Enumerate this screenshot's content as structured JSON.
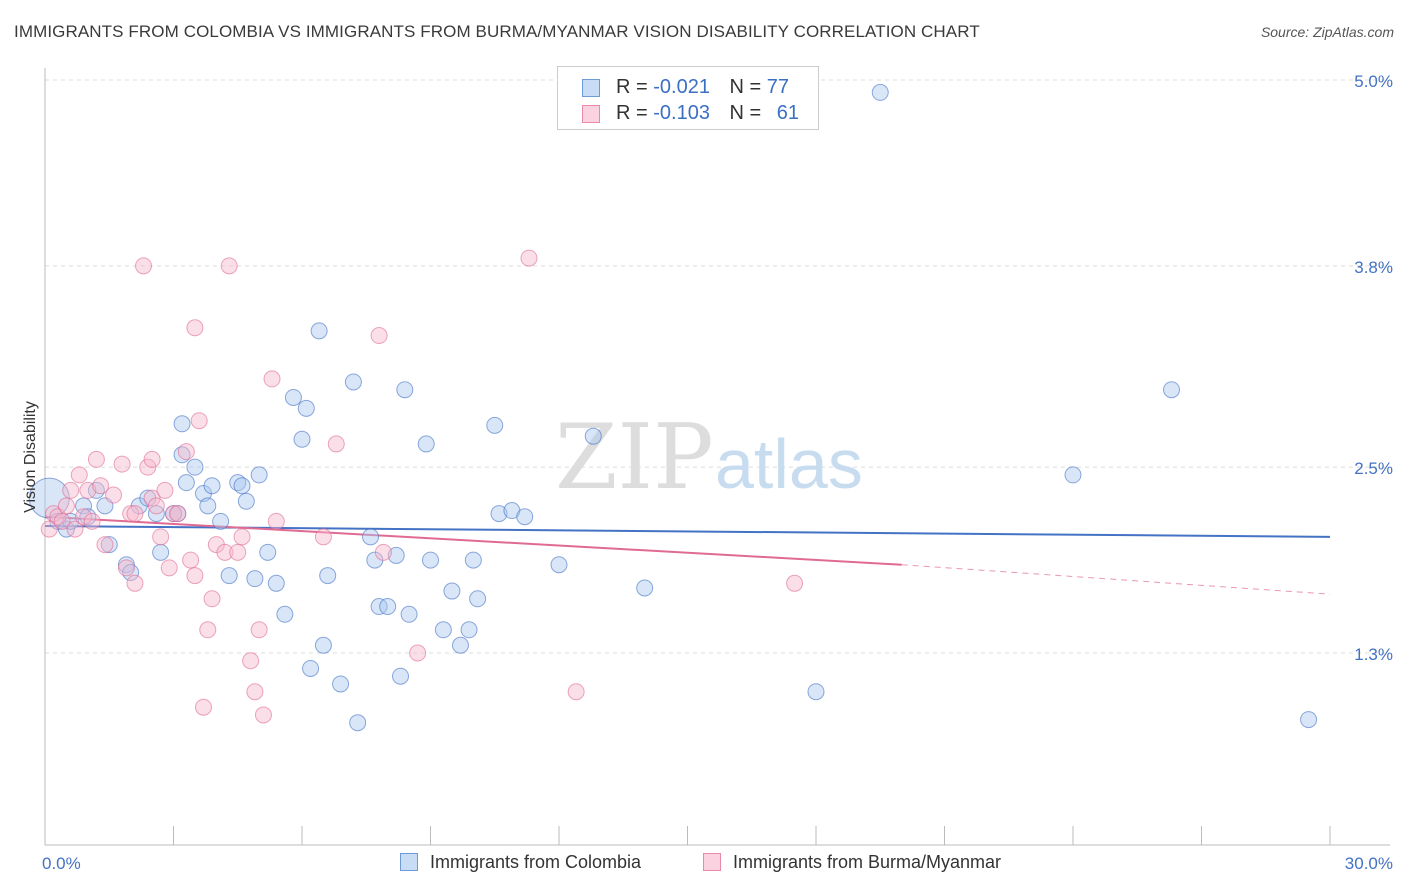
{
  "title": "IMMIGRANTS FROM COLOMBIA VS IMMIGRANTS FROM BURMA/MYANMAR VISION DISABILITY CORRELATION CHART",
  "source_label": "Source: ZipAtlas.com",
  "watermark": {
    "zip": "ZIP",
    "atlas": "atlas"
  },
  "legend": {
    "rows": [
      {
        "r_label": "R = ",
        "r_value": "-0.021",
        "n_label": "N = ",
        "n_value": "77",
        "color": "#a8c8f0"
      },
      {
        "r_label": "R = ",
        "r_value": "-0.103",
        "n_label": "N = ",
        "n_value": "61",
        "color": "#f6b8cc"
      }
    ]
  },
  "bottom_legend": {
    "colombia": "Immigrants from Colombia",
    "burma": "Immigrants from Burma/Myanmar"
  },
  "chart_data": {
    "type": "scatter",
    "title": "IMMIGRANTS FROM COLOMBIA VS IMMIGRANTS FROM BURMA/MYANMAR VISION DISABILITY CORRELATION CHART",
    "ylabel": "Vision Disability",
    "xlabel": "",
    "xlim": [
      0,
      30
    ],
    "ylim": [
      0,
      5.2
    ],
    "x_tick_labels": [
      "0.0%",
      "30.0%"
    ],
    "y_ticks": [
      1.3,
      2.5,
      3.8,
      5.0
    ],
    "y_tick_labels": [
      "1.3%",
      "2.5%",
      "3.8%",
      "5.0%"
    ],
    "series": [
      {
        "name": "Immigrants from Colombia",
        "color": "#4472c4",
        "fill": "#a8c8f0",
        "trend": {
          "x": [
            0,
            30
          ],
          "y": [
            2.12,
            2.05
          ]
        },
        "points": [
          [
            0.1,
            2.3
          ],
          [
            0.3,
            2.15
          ],
          [
            0.5,
            2.1
          ],
          [
            0.6,
            2.15
          ],
          [
            0.9,
            2.25
          ],
          [
            1.0,
            2.18
          ],
          [
            1.2,
            2.35
          ],
          [
            1.4,
            2.25
          ],
          [
            1.5,
            2.0
          ],
          [
            1.9,
            1.87
          ],
          [
            2.0,
            1.82
          ],
          [
            2.2,
            2.25
          ],
          [
            2.4,
            2.3
          ],
          [
            2.6,
            2.2
          ],
          [
            2.7,
            1.95
          ],
          [
            3.0,
            2.2
          ],
          [
            3.1,
            2.2
          ],
          [
            3.2,
            2.58
          ],
          [
            3.2,
            2.78
          ],
          [
            3.3,
            2.4
          ],
          [
            3.5,
            2.5
          ],
          [
            3.7,
            2.33
          ],
          [
            3.8,
            2.25
          ],
          [
            3.9,
            2.38
          ],
          [
            4.1,
            2.15
          ],
          [
            4.3,
            1.8
          ],
          [
            4.5,
            2.4
          ],
          [
            4.6,
            2.38
          ],
          [
            4.7,
            2.28
          ],
          [
            4.9,
            1.78
          ],
          [
            5.0,
            2.45
          ],
          [
            5.2,
            1.95
          ],
          [
            5.4,
            1.75
          ],
          [
            5.6,
            1.55
          ],
          [
            5.8,
            2.95
          ],
          [
            6.0,
            2.68
          ],
          [
            6.1,
            2.88
          ],
          [
            6.2,
            1.2
          ],
          [
            6.4,
            3.38
          ],
          [
            6.5,
            1.35
          ],
          [
            6.6,
            1.8
          ],
          [
            6.9,
            1.1
          ],
          [
            7.2,
            3.05
          ],
          [
            7.3,
            0.85
          ],
          [
            7.6,
            2.05
          ],
          [
            7.7,
            1.9
          ],
          [
            7.8,
            1.6
          ],
          [
            8.0,
            1.6
          ],
          [
            8.2,
            1.93
          ],
          [
            8.3,
            1.15
          ],
          [
            8.4,
            3.0
          ],
          [
            8.5,
            1.55
          ],
          [
            8.9,
            2.65
          ],
          [
            9.0,
            1.9
          ],
          [
            9.3,
            1.45
          ],
          [
            9.5,
            1.7
          ],
          [
            9.7,
            1.35
          ],
          [
            9.9,
            1.45
          ],
          [
            10.0,
            1.9
          ],
          [
            10.1,
            1.65
          ],
          [
            10.5,
            2.77
          ],
          [
            10.6,
            2.2
          ],
          [
            10.9,
            2.22
          ],
          [
            11.2,
            2.18
          ],
          [
            12.0,
            1.87
          ],
          [
            12.8,
            2.7
          ],
          [
            14.0,
            1.72
          ],
          [
            18.0,
            1.05
          ],
          [
            19.5,
            4.92
          ],
          [
            24.0,
            2.45
          ],
          [
            26.3,
            3.0
          ],
          [
            29.5,
            0.87
          ]
        ]
      },
      {
        "name": "Immigrants from Burma/Myanmar",
        "color": "#e06b92",
        "fill": "#f6b8cc",
        "trend": {
          "x": [
            0,
            20
          ],
          "y": [
            2.18,
            1.87
          ]
        },
        "trend_dashed": {
          "x": [
            20,
            30
          ],
          "y": [
            1.87,
            1.68
          ]
        },
        "points": [
          [
            0.1,
            2.1
          ],
          [
            0.2,
            2.2
          ],
          [
            0.3,
            2.18
          ],
          [
            0.4,
            2.15
          ],
          [
            0.5,
            2.25
          ],
          [
            0.6,
            2.35
          ],
          [
            0.7,
            2.1
          ],
          [
            0.8,
            2.45
          ],
          [
            0.9,
            2.18
          ],
          [
            1.0,
            2.35
          ],
          [
            1.1,
            2.15
          ],
          [
            1.2,
            2.55
          ],
          [
            1.3,
            2.38
          ],
          [
            1.4,
            2.0
          ],
          [
            1.6,
            2.32
          ],
          [
            1.8,
            2.52
          ],
          [
            1.9,
            1.85
          ],
          [
            2.0,
            2.2
          ],
          [
            2.1,
            2.2
          ],
          [
            2.1,
            1.75
          ],
          [
            2.3,
            3.8
          ],
          [
            2.4,
            2.5
          ],
          [
            2.5,
            2.3
          ],
          [
            2.5,
            2.55
          ],
          [
            2.6,
            2.25
          ],
          [
            2.7,
            2.05
          ],
          [
            2.8,
            2.35
          ],
          [
            2.9,
            1.85
          ],
          [
            3.0,
            2.2
          ],
          [
            3.1,
            2.2
          ],
          [
            3.3,
            2.6
          ],
          [
            3.4,
            1.9
          ],
          [
            3.5,
            1.8
          ],
          [
            3.5,
            3.4
          ],
          [
            3.6,
            2.8
          ],
          [
            3.7,
            0.95
          ],
          [
            3.8,
            1.45
          ],
          [
            3.9,
            1.65
          ],
          [
            4.0,
            2.0
          ],
          [
            4.2,
            1.95
          ],
          [
            4.3,
            3.8
          ],
          [
            4.5,
            1.95
          ],
          [
            4.6,
            2.05
          ],
          [
            4.8,
            1.25
          ],
          [
            4.9,
            1.05
          ],
          [
            5.0,
            1.45
          ],
          [
            5.1,
            0.9
          ],
          [
            5.3,
            3.07
          ],
          [
            5.4,
            2.15
          ],
          [
            6.5,
            2.05
          ],
          [
            6.8,
            2.65
          ],
          [
            7.8,
            3.35
          ],
          [
            7.9,
            1.95
          ],
          [
            8.7,
            1.3
          ],
          [
            11.3,
            3.85
          ],
          [
            12.4,
            1.05
          ],
          [
            17.5,
            1.75
          ]
        ]
      }
    ]
  }
}
